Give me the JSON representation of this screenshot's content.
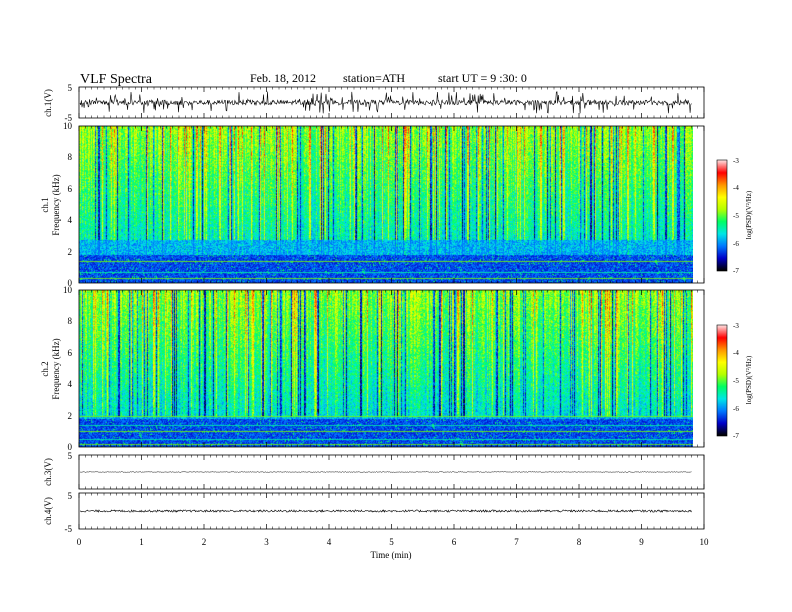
{
  "header": {
    "title": "VLF  Spectra",
    "date": "Feb. 18, 2012",
    "station": "station=ATH",
    "start": "start  UT  =   9  :30: 0"
  },
  "chart_data": {
    "type": "heatmap",
    "xlabel": "Time  (min)",
    "xlim": [
      0,
      10
    ],
    "x_ticks": [
      "0",
      "1",
      "2",
      "3",
      "4",
      "5",
      "6",
      "7",
      "8",
      "9",
      "10"
    ],
    "data_end_min": 9.8,
    "panels": [
      {
        "id": "ch1-wave",
        "type": "line",
        "ylabel": "ch.1(V)",
        "ylim": [
          -5,
          5
        ],
        "y_ticks": [
          "5",
          "-5"
        ],
        "amplitude": 0.8,
        "spikes": true
      },
      {
        "id": "ch1-spec",
        "type": "heatmap",
        "ylabel_top": "ch.1",
        "ylabel": "Frequency  (kHz)",
        "ylim": [
          0,
          10
        ],
        "y_ticks": [
          "0",
          "2",
          "4",
          "6",
          "8",
          "10"
        ],
        "colorbar": {
          "label": "log(PSD)(V²/Hz)",
          "range": [
            -7,
            -3
          ],
          "ticks": [
            "-3",
            "-4",
            "-5",
            "-6",
            "-7"
          ]
        }
      },
      {
        "id": "ch2-spec",
        "type": "heatmap",
        "ylabel_top": "ch.2",
        "ylabel": "Frequency  (kHz)",
        "ylim": [
          0,
          10
        ],
        "y_ticks": [
          "0",
          "2",
          "4",
          "6",
          "8",
          "10"
        ],
        "colorbar": {
          "label": "log(PSD)(V²/Hz)",
          "range": [
            -7,
            -3
          ],
          "ticks": [
            "-3",
            "-4",
            "-5",
            "-6",
            "-7"
          ]
        }
      },
      {
        "id": "ch3-wave",
        "type": "line",
        "ylabel": "ch.3(V)",
        "ylim": [
          -5,
          5
        ],
        "y_ticks": [
          "5"
        ],
        "amplitude": 0.1
      },
      {
        "id": "ch4-wave",
        "type": "line",
        "ylabel": "ch.4(V)",
        "ylim": [
          -5,
          5
        ],
        "y_ticks": [
          "5",
          "-5"
        ],
        "amplitude": 0.3
      }
    ],
    "colormap": [
      "#000000",
      "#0000c8",
      "#0078ff",
      "#00e6e6",
      "#00ff64",
      "#b4ff00",
      "#ffff00",
      "#ff9600",
      "#ff0000",
      "#ffdcdc"
    ]
  }
}
